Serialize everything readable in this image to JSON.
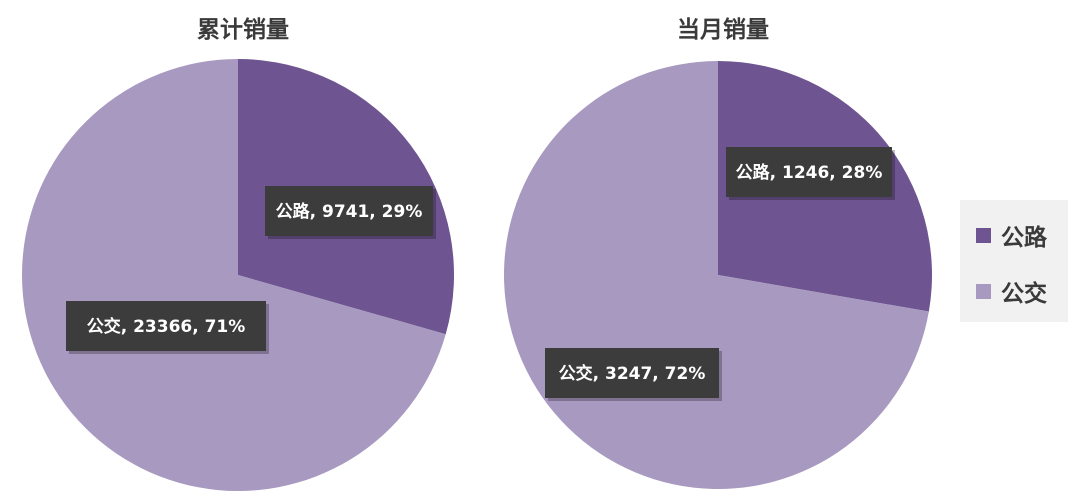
{
  "colors": {
    "gonglu": "#6e5490",
    "gongjiao": "#a899c0",
    "label_bg": "#3c3c3c",
    "label_text": "#ffffff"
  },
  "legend": {
    "items": [
      {
        "label": "公路",
        "color": "#6e5490"
      },
      {
        "label": "公交",
        "color": "#a899c0"
      }
    ]
  },
  "chart_data": [
    {
      "type": "pie",
      "title": "累计销量",
      "slices": [
        {
          "name": "公路",
          "value": 9741,
          "percent": "29%",
          "label": "公路, 9741, 29%"
        },
        {
          "name": "公交",
          "value": 23366,
          "percent": "71%",
          "label": "公交, 23366, 71%"
        }
      ]
    },
    {
      "type": "pie",
      "title": "当月销量",
      "slices": [
        {
          "name": "公路",
          "value": 1246,
          "percent": "28%",
          "label": "公路, 1246, 28%"
        },
        {
          "name": "公交",
          "value": 3247,
          "percent": "72%",
          "label": "公交, 3247, 72%"
        }
      ]
    }
  ]
}
